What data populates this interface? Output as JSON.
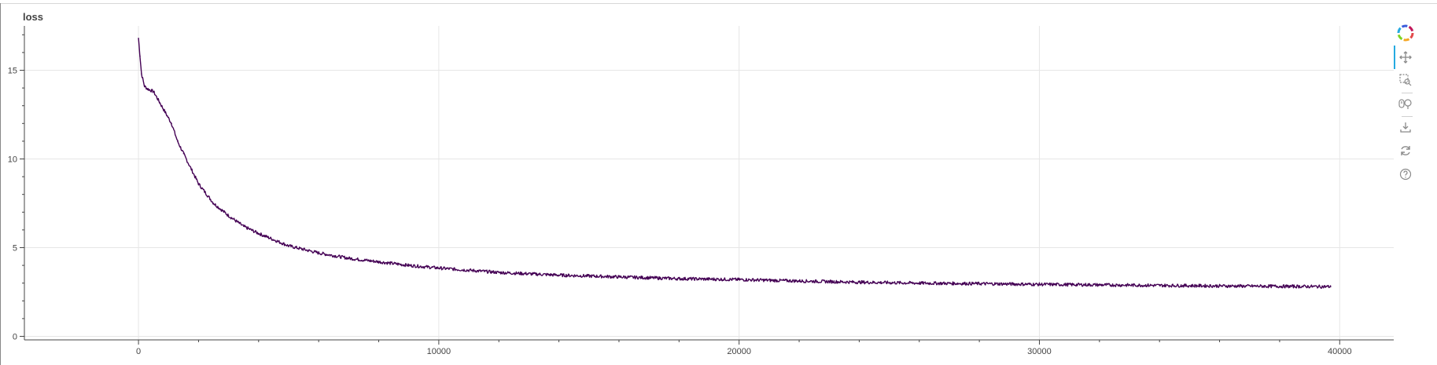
{
  "chart_data": {
    "type": "line",
    "title": "loss",
    "xlabel": "",
    "ylabel": "",
    "xlim": [
      -3800,
      41800
    ],
    "ylim": [
      -0.2,
      17.5
    ],
    "x_ticks": [
      0,
      10000,
      20000,
      30000,
      40000
    ],
    "x_tick_labels": [
      "0",
      "10000",
      "20000",
      "30000",
      "40000"
    ],
    "y_ticks": [
      0,
      5,
      10,
      15
    ],
    "y_tick_labels": [
      "0",
      "5",
      "10",
      "15"
    ],
    "grid": true,
    "legend": "none",
    "series": [
      {
        "color": "#440154",
        "x": [
          0,
          50,
          100,
          200,
          300,
          500,
          700,
          900,
          1100,
          1300,
          1500,
          2000,
          2500,
          3000,
          3500,
          4000,
          5000,
          6000,
          7000,
          8000,
          9000,
          10000,
          12000,
          14000,
          16000,
          18000,
          20000,
          22000,
          24000,
          26000,
          28000,
          30000,
          32000,
          34000,
          36000,
          38000,
          39700
        ],
        "y": [
          16.8,
          15.8,
          14.8,
          14.1,
          13.95,
          13.8,
          13.2,
          12.6,
          12.0,
          11.0,
          10.3,
          8.6,
          7.5,
          6.8,
          6.2,
          5.8,
          5.1,
          4.7,
          4.4,
          4.2,
          4.0,
          3.85,
          3.6,
          3.45,
          3.35,
          3.25,
          3.2,
          3.12,
          3.05,
          3.0,
          2.97,
          2.93,
          2.9,
          2.87,
          2.84,
          2.82,
          2.8
        ]
      }
    ]
  },
  "toolbar": {
    "tools": [
      "bokeh-logo-icon",
      "pan-icon",
      "box-zoom-icon",
      "wheel-zoom-icon",
      "save-icon",
      "reset-icon",
      "help-icon"
    ]
  }
}
